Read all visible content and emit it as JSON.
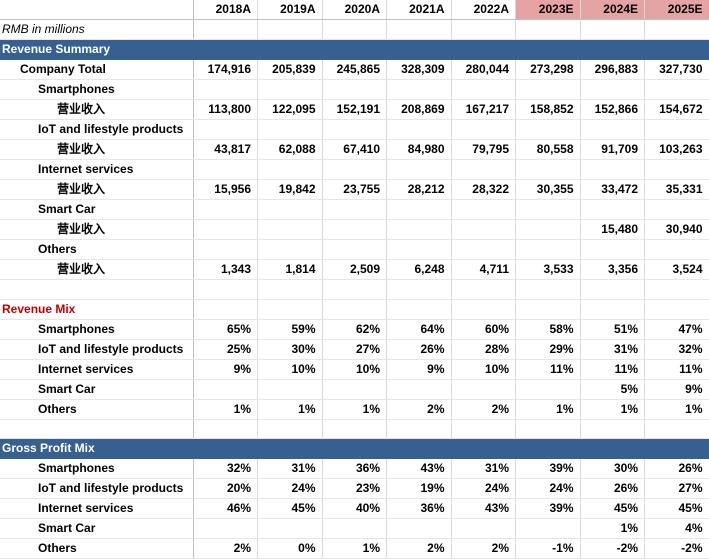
{
  "units_note": "RMB in millions",
  "years": [
    "2018A",
    "2019A",
    "2020A",
    "2021A",
    "2022A",
    "2023E",
    "2024E",
    "2025E"
  ],
  "colors": {
    "band": "#376091",
    "estimate_header": "#e6a3a3",
    "mix_title": "#c00000"
  },
  "revenue_summary": {
    "title": "Revenue Summary",
    "company_total": {
      "label": "Company Total",
      "values": [
        "174,916",
        "205,839",
        "245,865",
        "328,309",
        "280,044",
        "273,298",
        "296,883",
        "327,730"
      ]
    },
    "segments": [
      {
        "name": "Smartphones",
        "sub_label": "营业收入",
        "values": [
          "113,800",
          "122,095",
          "152,191",
          "208,869",
          "167,217",
          "158,852",
          "152,866",
          "154,672"
        ]
      },
      {
        "name": "IoT and lifestyle products",
        "sub_label": "营业收入",
        "values": [
          "43,817",
          "62,088",
          "67,410",
          "84,980",
          "79,795",
          "80,558",
          "91,709",
          "103,263"
        ]
      },
      {
        "name": "Internet services",
        "sub_label": "营业收入",
        "values": [
          "15,956",
          "19,842",
          "23,755",
          "28,212",
          "28,322",
          "30,355",
          "33,472",
          "35,331"
        ]
      },
      {
        "name": "Smart Car",
        "sub_label": "营业收入",
        "values": [
          "",
          "",
          "",
          "",
          "",
          "",
          "15,480",
          "30,940"
        ]
      },
      {
        "name": "Others",
        "sub_label": "营业收入",
        "values": [
          "1,343",
          "1,814",
          "2,509",
          "6,248",
          "4,711",
          "3,533",
          "3,356",
          "3,524"
        ]
      }
    ]
  },
  "revenue_mix": {
    "title": "Revenue Mix",
    "rows": [
      {
        "name": "Smartphones",
        "values": [
          "65%",
          "59%",
          "62%",
          "64%",
          "60%",
          "58%",
          "51%",
          "47%"
        ]
      },
      {
        "name": "IoT and lifestyle products",
        "values": [
          "25%",
          "30%",
          "27%",
          "26%",
          "28%",
          "29%",
          "31%",
          "32%"
        ]
      },
      {
        "name": "Internet services",
        "values": [
          "9%",
          "10%",
          "10%",
          "9%",
          "10%",
          "11%",
          "11%",
          "11%"
        ]
      },
      {
        "name": "Smart Car",
        "values": [
          "",
          "",
          "",
          "",
          "",
          "",
          "5%",
          "9%"
        ]
      },
      {
        "name": "Others",
        "values": [
          "1%",
          "1%",
          "1%",
          "2%",
          "2%",
          "1%",
          "1%",
          "1%"
        ]
      }
    ]
  },
  "gross_profit_mix": {
    "title": "Gross Profit Mix",
    "rows": [
      {
        "name": "Smartphones",
        "values": [
          "32%",
          "31%",
          "36%",
          "43%",
          "31%",
          "39%",
          "30%",
          "26%"
        ]
      },
      {
        "name": "IoT and lifestyle products",
        "values": [
          "20%",
          "24%",
          "23%",
          "19%",
          "24%",
          "24%",
          "26%",
          "27%"
        ]
      },
      {
        "name": "Internet services",
        "values": [
          "46%",
          "45%",
          "40%",
          "36%",
          "43%",
          "39%",
          "45%",
          "45%"
        ]
      },
      {
        "name": "Smart Car",
        "values": [
          "",
          "",
          "",
          "",
          "",
          "",
          "1%",
          "4%"
        ]
      },
      {
        "name": "Others",
        "values": [
          "2%",
          "0%",
          "1%",
          "2%",
          "2%",
          "-1%",
          "-2%",
          "-2%"
        ]
      }
    ]
  }
}
